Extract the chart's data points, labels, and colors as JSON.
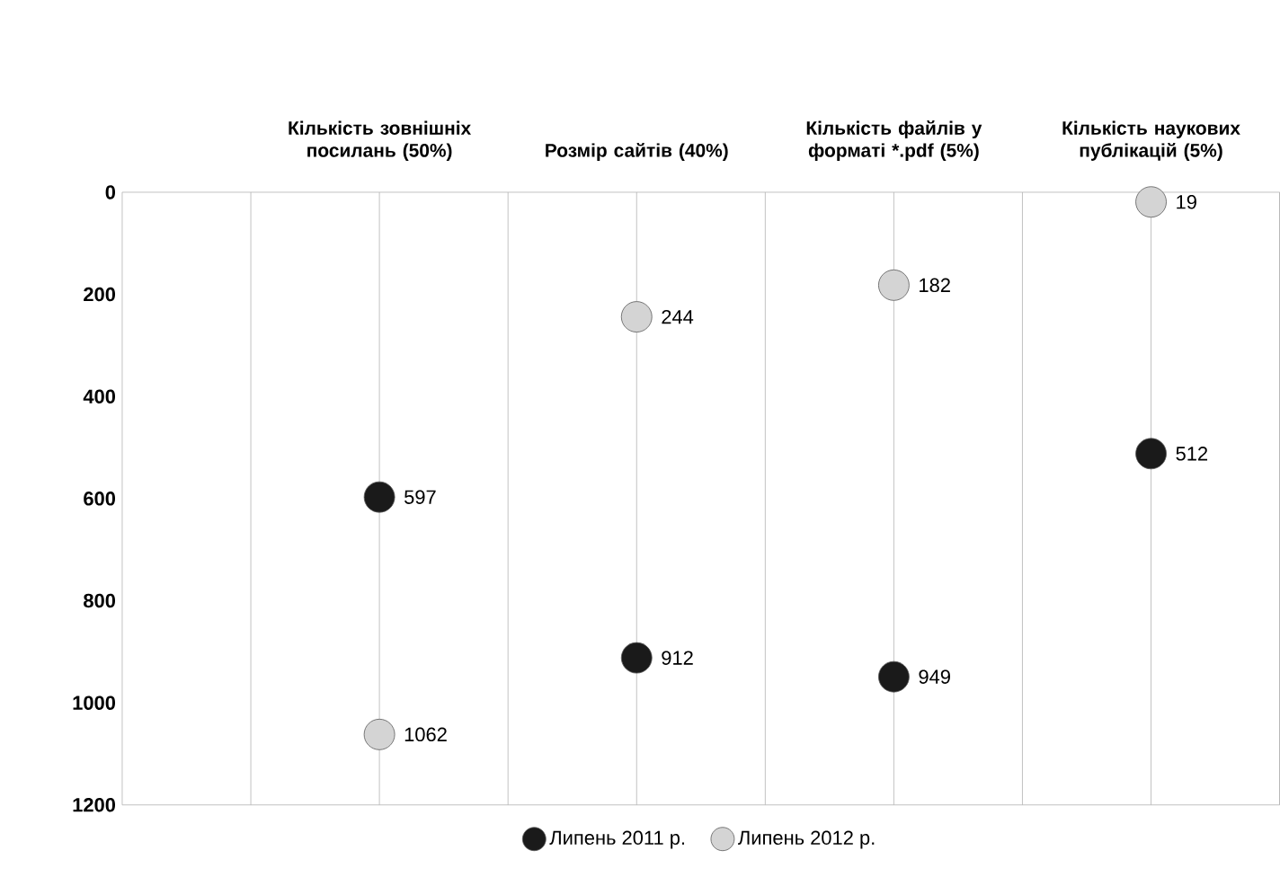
{
  "chart_data": {
    "type": "scatter",
    "categories": [
      "Кількість зовнішніх посилань (50%)",
      "Розмір сайтів (40%)",
      "Кількість файлів у форматі *.pdf (5%)",
      "Кількість наукових публікацій (5%)"
    ],
    "series": [
      {
        "name": "Липень 2011 р.",
        "color": "#1a1a1a",
        "values": [
          597,
          912,
          949,
          512
        ]
      },
      {
        "name": "Липень 2012 р.",
        "color": "#d4d4d4",
        "values": [
          1062,
          244,
          182,
          19
        ]
      }
    ],
    "ylim": [
      1200,
      0
    ],
    "yticks": [
      0,
      200,
      400,
      600,
      800,
      1000,
      1200
    ],
    "grid": "x",
    "legend": "bottom",
    "marker": "circle",
    "data_labels": true
  }
}
